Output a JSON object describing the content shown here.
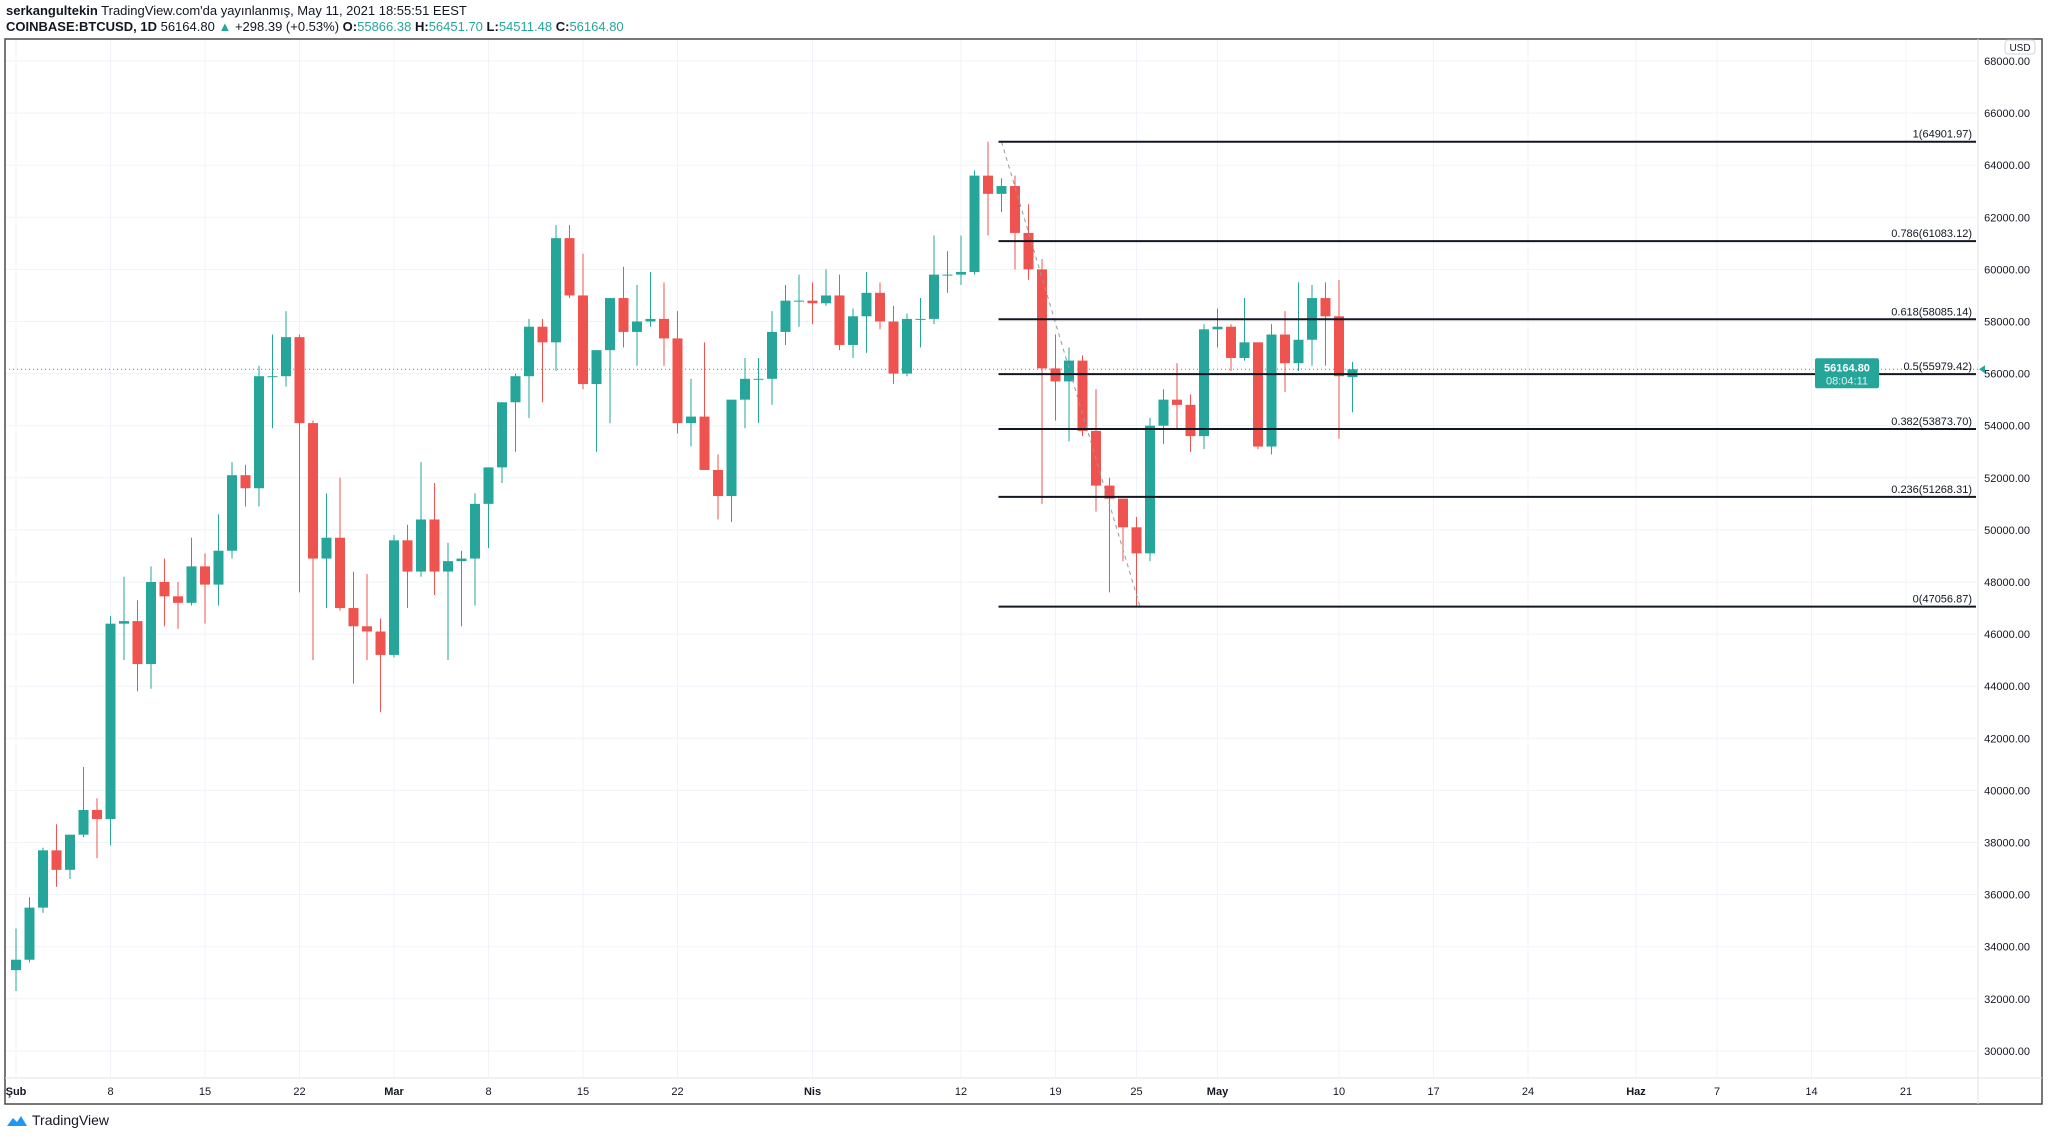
{
  "header": {
    "author": "serkangultekin",
    "published": "TradingView.com'da yayınlanmış, May 11, 2021 18:55:51 EEST",
    "symbol": "COINBASE:BTCUSD, 1D",
    "last": "56164.80",
    "change": "+298.39 (+0.53%)",
    "o_label": "O:",
    "o": "55866.38",
    "h_label": "H:",
    "h": "56451.70",
    "l_label": "L:",
    "l": "54511.48",
    "c_label": "C:",
    "c": "56164.80"
  },
  "footer": {
    "brand": "TradingView"
  },
  "colors": {
    "up": "#26a69a",
    "down": "#ef5350",
    "grid": "#f0f3fa",
    "fib": "#131722"
  },
  "chart_data": {
    "type": "candlestick",
    "currency": "USD",
    "ylim": [
      29000,
      68500
    ],
    "yticks": [
      30000,
      32000,
      34000,
      36000,
      38000,
      40000,
      42000,
      44000,
      46000,
      48000,
      50000,
      52000,
      54000,
      56000,
      58000,
      60000,
      62000,
      64000,
      66000,
      68000
    ],
    "ytick_labels": [
      "30000.00",
      "32000.00",
      "34000.00",
      "36000.00",
      "38000.00",
      "40000.00",
      "42000.00",
      "44000.00",
      "46000.00",
      "48000.00",
      "50000.00",
      "52000.00",
      "54000.00",
      "56000.00",
      "58000.00",
      "60000.00",
      "62000.00",
      "64000.00",
      "66000.00",
      "68000.00"
    ],
    "xticks": [
      {
        "day": 0,
        "label": "Şub"
      },
      {
        "day": 7,
        "label": "8"
      },
      {
        "day": 14,
        "label": "15"
      },
      {
        "day": 21,
        "label": "22"
      },
      {
        "day": 28,
        "label": "Mar"
      },
      {
        "day": 35,
        "label": "8"
      },
      {
        "day": 42,
        "label": "15"
      },
      {
        "day": 49,
        "label": "22"
      },
      {
        "day": 59,
        "label": "Nis"
      },
      {
        "day": 70,
        "label": "12"
      },
      {
        "day": 77,
        "label": "19"
      },
      {
        "day": 83,
        "label": "25"
      },
      {
        "day": 89,
        "label": "May"
      },
      {
        "day": 98,
        "label": "10"
      },
      {
        "day": 105,
        "label": "17"
      },
      {
        "day": 112,
        "label": "24"
      },
      {
        "day": 120,
        "label": "Haz"
      },
      {
        "day": 126,
        "label": "7"
      },
      {
        "day": 133,
        "label": "14"
      },
      {
        "day": 140,
        "label": "21"
      }
    ],
    "last_price_label": "56164.80",
    "countdown": "08:04:11",
    "candles_ohlc_from_jan31": [
      [
        34300,
        34700,
        32300,
        33100
      ],
      [
        33100,
        34700,
        32300,
        33500
      ],
      [
        33500,
        35900,
        33400,
        35500
      ],
      [
        35500,
        37800,
        35300,
        37700
      ],
      [
        37700,
        38700,
        36300,
        36950
      ],
      [
        36950,
        38300,
        36600,
        38300
      ],
      [
        38300,
        40900,
        38200,
        39250
      ],
      [
        39250,
        39700,
        37400,
        38900
      ],
      [
        38900,
        46700,
        37900,
        46400
      ],
      [
        46400,
        48200,
        45000,
        46500
      ],
      [
        46500,
        47300,
        43800,
        44850
      ],
      [
        44850,
        48600,
        43900,
        48000
      ],
      [
        48000,
        48900,
        46300,
        47450
      ],
      [
        47450,
        48000,
        46200,
        47200
      ],
      [
        47200,
        49700,
        47100,
        48600
      ],
      [
        48600,
        49100,
        46400,
        47900
      ],
      [
        47900,
        50600,
        47100,
        49200
      ],
      [
        49200,
        52600,
        48900,
        52100
      ],
      [
        52100,
        52500,
        50900,
        51600
      ],
      [
        51600,
        56300,
        50900,
        55900
      ],
      [
        55900,
        57500,
        53900,
        55900
      ],
      [
        55900,
        58400,
        55500,
        57400
      ],
      [
        57400,
        57500,
        47600,
        54100
      ],
      [
        54100,
        54200,
        45000,
        48900
      ],
      [
        48900,
        51400,
        47000,
        49700
      ],
      [
        49700,
        52000,
        46900,
        47000
      ],
      [
        47000,
        48400,
        44100,
        46300
      ],
      [
        46300,
        48300,
        45000,
        46100
      ],
      [
        46100,
        46600,
        43000,
        45200
      ],
      [
        45200,
        49800,
        45100,
        49600
      ],
      [
        49600,
        50200,
        47000,
        48400
      ],
      [
        48400,
        52600,
        48200,
        50400
      ],
      [
        50400,
        51800,
        47500,
        48400
      ],
      [
        48400,
        49500,
        45000,
        48800
      ],
      [
        48800,
        49200,
        46300,
        48900
      ],
      [
        48900,
        51400,
        47100,
        51000
      ],
      [
        51000,
        52400,
        49300,
        52400
      ],
      [
        52400,
        54900,
        51800,
        54900
      ],
      [
        54900,
        56000,
        53000,
        55900
      ],
      [
        55900,
        58100,
        54300,
        57800
      ],
      [
        57800,
        58100,
        54900,
        57200
      ],
      [
        57200,
        61700,
        56100,
        61200
      ],
      [
        61200,
        61700,
        58900,
        59000
      ],
      [
        59000,
        60600,
        55400,
        55600
      ],
      [
        55600,
        56900,
        53000,
        56900
      ],
      [
        56900,
        58900,
        54100,
        58900
      ],
      [
        58900,
        60100,
        57000,
        57600
      ],
      [
        57600,
        59400,
        56300,
        58000
      ],
      [
        58000,
        59900,
        57800,
        58100
      ],
      [
        58100,
        59500,
        56300,
        57350
      ],
      [
        57350,
        58400,
        53700,
        54100
      ],
      [
        54100,
        55800,
        53200,
        54350
      ],
      [
        54350,
        57200,
        52900,
        52300
      ],
      [
        52300,
        52900,
        50400,
        51300
      ],
      [
        51300,
        51700,
        50300,
        55000
      ],
      [
        55000,
        56600,
        53900,
        55800
      ],
      [
        55800,
        56600,
        54100,
        55800
      ],
      [
        55800,
        58400,
        54800,
        57600
      ],
      [
        57600,
        59400,
        57100,
        58800
      ],
      [
        58800,
        59800,
        57800,
        58800
      ],
      [
        58800,
        59500,
        57900,
        58700
      ],
      [
        58700,
        60000,
        58600,
        59000
      ],
      [
        59000,
        59800,
        56900,
        57100
      ],
      [
        57100,
        58500,
        56600,
        58200
      ],
      [
        58200,
        59900,
        56800,
        59100
      ],
      [
        59100,
        59500,
        57700,
        58000
      ],
      [
        58000,
        58600,
        55600,
        56000
      ],
      [
        56000,
        58300,
        55900,
        58100
      ],
      [
        58100,
        58900,
        57000,
        58100
      ],
      [
        58100,
        61300,
        57900,
        59800
      ],
      [
        59800,
        60700,
        59100,
        59800
      ],
      [
        59800,
        61300,
        59400,
        59900
      ],
      [
        59900,
        63800,
        59800,
        63600
      ],
      [
        63600,
        64900,
        61300,
        62900
      ],
      [
        62900,
        63500,
        62200,
        63200
      ],
      [
        63200,
        63600,
        60000,
        61400
      ],
      [
        61400,
        62500,
        59600,
        60000
      ],
      [
        60000,
        60400,
        51000,
        56200
      ],
      [
        56200,
        57500,
        54200,
        55700
      ],
      [
        55700,
        57000,
        53400,
        56500
      ],
      [
        56500,
        56700,
        53600,
        53800
      ],
      [
        53800,
        55400,
        50700,
        51700
      ],
      [
        51700,
        52000,
        47600,
        51200
      ],
      [
        51200,
        51200,
        48800,
        50100
      ],
      [
        50100,
        50500,
        47056,
        49100
      ],
      [
        49100,
        54300,
        48800,
        54000
      ],
      [
        54000,
        55400,
        53300,
        55000
      ],
      [
        55000,
        56400,
        53900,
        54800
      ],
      [
        54800,
        55200,
        53000,
        53600
      ],
      [
        53600,
        57900,
        53100,
        57700
      ],
      [
        57700,
        58500,
        57000,
        57800
      ],
      [
        57800,
        57900,
        56100,
        56600
      ],
      [
        56600,
        58900,
        56500,
        57200
      ],
      [
        57200,
        57200,
        53100,
        53200
      ],
      [
        53200,
        57900,
        52900,
        57500
      ],
      [
        57500,
        58400,
        55300,
        56400
      ],
      [
        56400,
        59500,
        56100,
        57300
      ],
      [
        57300,
        59400,
        56300,
        58900
      ],
      [
        58900,
        59500,
        56300,
        58200
      ],
      [
        58200,
        59600,
        53500,
        55900
      ],
      [
        55866,
        56451,
        54511,
        56164
      ]
    ],
    "fibonacci": {
      "start_day": 73,
      "end_day": 84,
      "levels": [
        {
          "ratio": "1",
          "price": 64901.97,
          "label": "1(64901.97)"
        },
        {
          "ratio": "0.786",
          "price": 61083.12,
          "label": "0.786(61083.12)"
        },
        {
          "ratio": "0.618",
          "price": 58085.14,
          "label": "0.618(58085.14)"
        },
        {
          "ratio": "0.5",
          "price": 55979.42,
          "label": "0.5(55979.42)"
        },
        {
          "ratio": "0.382",
          "price": 53873.7,
          "label": "0.382(53873.70)"
        },
        {
          "ratio": "0.236",
          "price": 51268.31,
          "label": "0.236(51268.31)"
        },
        {
          "ratio": "0",
          "price": 47056.87,
          "label": "0(47056.87)"
        }
      ]
    }
  }
}
